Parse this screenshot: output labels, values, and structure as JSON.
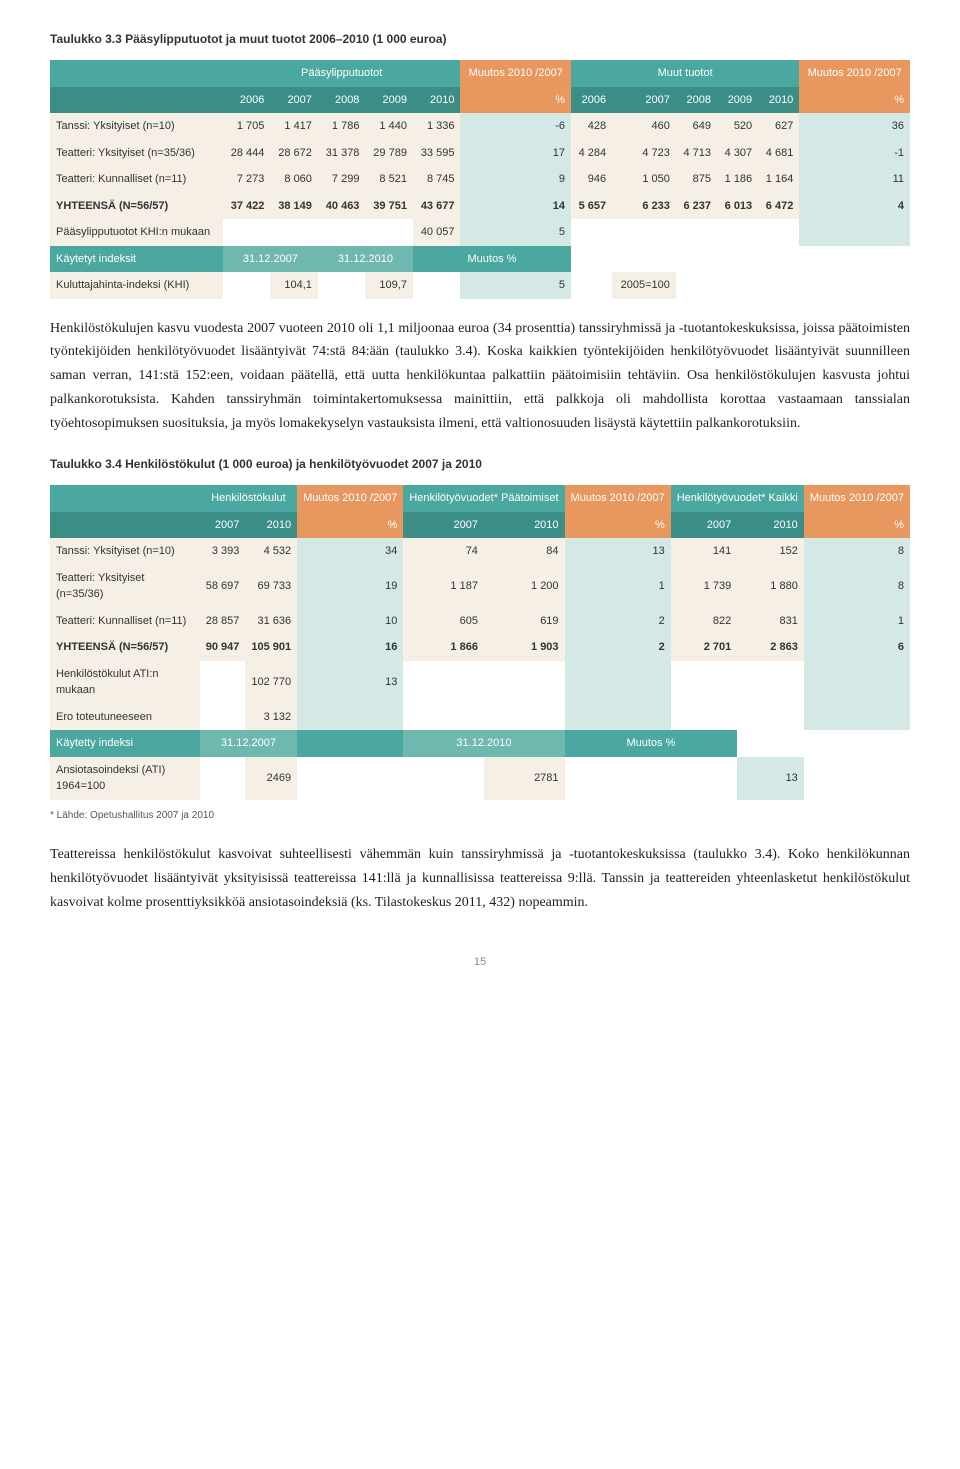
{
  "table1": {
    "caption": "Taulukko 3.3 Pääsylipputuotot ja muut tuotot 2006–2010 (1 000 euroa)",
    "group_headers": [
      "",
      "Pääsylipputuotot",
      "Muutos 2010 /2007",
      "Muut tuotot",
      "Muutos 2010 /2007"
    ],
    "col_headers": [
      "",
      "2006",
      "2007",
      "2008",
      "2009",
      "2010",
      "%",
      "2006",
      "2007",
      "2008",
      "2009",
      "2010",
      "%"
    ],
    "rows": [
      {
        "label": "Tanssi: Yksityiset (n=10)",
        "vals": [
          "1 705",
          "1 417",
          "1 786",
          "1 440",
          "1 336",
          "-6",
          "428",
          "460",
          "649",
          "520",
          "627",
          "36"
        ]
      },
      {
        "label": "Teatteri: Yksityiset (n=35/36)",
        "vals": [
          "28 444",
          "28 672",
          "31 378",
          "29 789",
          "33 595",
          "17",
          "4 284",
          "4 723",
          "4 713",
          "4 307",
          "4 681",
          "-1"
        ]
      },
      {
        "label": "Teatteri: Kunnalliset (n=11)",
        "vals": [
          "7 273",
          "8 060",
          "7 299",
          "8 521",
          "8 745",
          "9",
          "946",
          "1 050",
          "875",
          "1 186",
          "1 164",
          "11"
        ]
      }
    ],
    "total": {
      "label": "YHTEENSÄ (N=56/57)",
      "vals": [
        "37 422",
        "38 149",
        "40 463",
        "39 751",
        "43 677",
        "14",
        "5 657",
        "6 233",
        "6 237",
        "6 013",
        "6 472",
        "4"
      ]
    },
    "extra1": {
      "label": "Pääsylipputuotot KHI:n mukaan",
      "vals": [
        "",
        "",
        "",
        "",
        "40 057",
        "5",
        "",
        "",
        "",
        "",
        "",
        ""
      ]
    },
    "index_row": {
      "label": "Käytetyt indeksit",
      "a": "31.12.2007",
      "b": "31.12.2010",
      "c": "Muutos %"
    },
    "khi": {
      "label": "Kuluttajahinta-indeksi (KHI)",
      "vals": [
        "",
        "104,1",
        "",
        "109,7",
        "",
        "5",
        "",
        "2005=100",
        "",
        "",
        "",
        ""
      ]
    }
  },
  "para1": "Henkilöstökulujen kasvu vuodesta 2007 vuoteen 2010 oli 1,1 miljoonaa euroa (34 prosenttia) tanssiryhmissä ja -tuotantokeskuksissa, joissa päätoimisten työntekijöiden henkilötyövuodet lisääntyivät 74:stä 84:ään (taulukko 3.4). Koska kaikkien työntekijöiden henkilötyövuodet lisääntyivät suunnilleen saman verran, 141:stä 152:een, voidaan päätellä, että uutta henkilökuntaa palkattiin päätoimisiin tehtäviin. Osa henkilöstökulujen kasvusta johtui palkankorotuksista. Kahden tanssiryhmän toimintakertomuksessa mainittiin, että palkkoja oli mahdollista korottaa vastaamaan tanssialan työehtosopimuksen suosituksia, ja myös lomakekyselyn vastauksista ilmeni, että valtionosuuden lisäystä käytettiin palkankorotuksiin.",
  "table2": {
    "caption": "Taulukko 3.4 Henkilöstökulut (1 000 euroa) ja henkilötyövuodet 2007 ja 2010",
    "group_headers": [
      "",
      "Henkilöstökulut",
      "Muutos 2010 /2007",
      "Henkilötyövuodet* Päätoimiset",
      "Muutos 2010 /2007",
      "Henkilötyövuodet* Kaikki",
      "Muutos 2010 /2007"
    ],
    "col_headers": [
      "",
      "2007",
      "2010",
      "%",
      "2007",
      "2010",
      "%",
      "2007",
      "2010",
      "%"
    ],
    "rows": [
      {
        "label": "Tanssi: Yksityiset (n=10)",
        "vals": [
          "3 393",
          "4 532",
          "34",
          "74",
          "84",
          "13",
          "141",
          "152",
          "8"
        ]
      },
      {
        "label": "Teatteri: Yksityiset (n=35/36)",
        "vals": [
          "58 697",
          "69 733",
          "19",
          "1 187",
          "1 200",
          "1",
          "1 739",
          "1 880",
          "8"
        ]
      },
      {
        "label": "Teatteri: Kunnalliset (n=11)",
        "vals": [
          "28 857",
          "31 636",
          "10",
          "605",
          "619",
          "2",
          "822",
          "831",
          "1"
        ]
      }
    ],
    "total": {
      "label": "YHTEENSÄ (N=56/57)",
      "vals": [
        "90 947",
        "105 901",
        "16",
        "1 866",
        "1 903",
        "2",
        "2 701",
        "2 863",
        "6"
      ]
    },
    "extra1": {
      "label": "Henkilöstökulut ATI:n mukaan",
      "vals": [
        "",
        "102 770",
        "13",
        "",
        "",
        "",
        "",
        "",
        ""
      ]
    },
    "extra2": {
      "label": "Ero toteutuneeseen",
      "vals": [
        "",
        "3 132",
        "",
        "",
        "",
        "",
        "",
        "",
        ""
      ]
    },
    "index_row": {
      "label": "Käytetty indeksi",
      "a": "31.12.2007",
      "b": "31.12.2010",
      "c": "Muutos %"
    },
    "ati": {
      "label": "Ansiotasoindeksi (ATI) 1964=100",
      "vals": [
        "",
        "2469",
        "",
        "",
        "2781",
        "",
        "",
        "13",
        ""
      ]
    },
    "footnote": "* Lähde: Opetushallitus 2007 ja 2010"
  },
  "para2": "Teattereissa henkilöstökulut kasvoivat suhteellisesti vähemmän kuin tanssiryhmissä ja -tuotantokeskuksissa (taulukko 3.4). Koko henkilökunnan henkilötyövuodet lisääntyivät yksityisissä teattereissa 141:llä ja kunnallisissa teattereissa 9:llä. Tanssin ja teattereiden yhteenlasketut henkilöstökulut kasvoivat kolme prosenttiyksikköä ansiotasoindeksiä (ks. Tilastokeskus 2011, 432) nopeammin.",
  "page": "15"
}
